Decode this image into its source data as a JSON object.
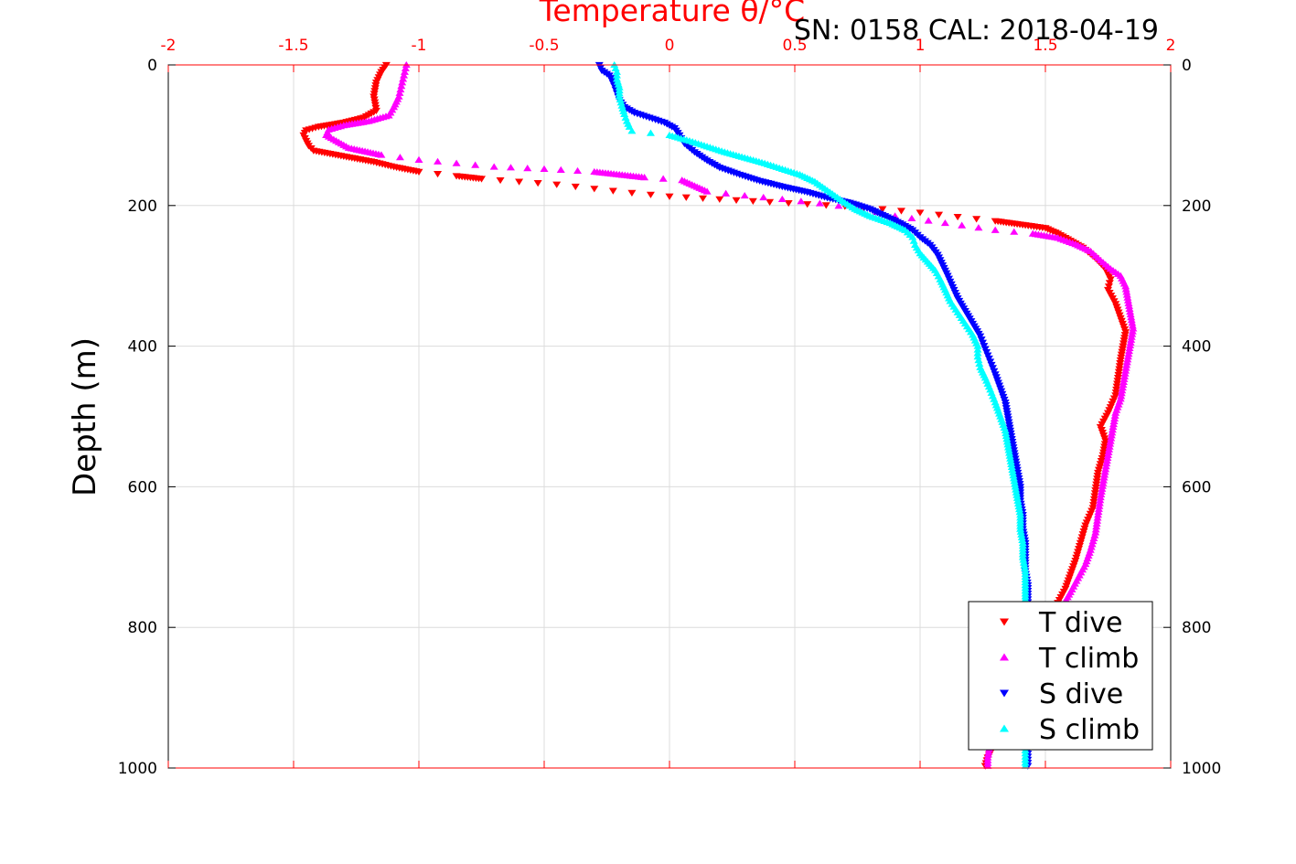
{
  "chart_data": {
    "type": "scatter",
    "title": "Temperature θ/°C",
    "subtitle": "SN: 0158  CAL: 2018-04-19",
    "xlabel": "Temperature θ/°C",
    "ylabel": "Depth (m)",
    "xlim": [
      -2,
      2
    ],
    "ylim": [
      0,
      1000
    ],
    "y_reversed": true,
    "x_ticks": [
      -2,
      -1.5,
      -1,
      -0.5,
      0,
      0.5,
      1,
      1.5,
      2
    ],
    "x_tick_labels": [
      "-2",
      "-1.5",
      "-1",
      "-0.5",
      "0",
      "0.5",
      "1",
      "1.5",
      "2"
    ],
    "y_ticks": [
      0,
      200,
      400,
      600,
      800,
      1000
    ],
    "y_tick_labels": [
      "0",
      "200",
      "400",
      "600",
      "800",
      "1000"
    ],
    "grid": true,
    "legend_position": "bottom-right",
    "series": [
      {
        "name": "T dive",
        "color": "#ff0000",
        "marker": "triangle-down",
        "points": [
          [
            -1.13,
            0
          ],
          [
            -1.15,
            10
          ],
          [
            -1.17,
            25
          ],
          [
            -1.18,
            45
          ],
          [
            -1.17,
            65
          ],
          [
            -1.22,
            75
          ],
          [
            -1.3,
            82
          ],
          [
            -1.4,
            88
          ],
          [
            -1.45,
            93
          ],
          [
            -1.46,
            100
          ],
          [
            -1.45,
            108
          ],
          [
            -1.44,
            115
          ],
          [
            -1.42,
            122
          ],
          [
            -1.3,
            130
          ],
          [
            -1.18,
            138
          ],
          [
            -1.1,
            145
          ],
          [
            -1.0,
            152
          ],
          [
            -0.85,
            158
          ],
          [
            -0.75,
            162
          ],
          [
            -0.6,
            166
          ],
          [
            -0.45,
            170
          ],
          [
            -0.3,
            176
          ],
          [
            -0.15,
            182
          ],
          [
            0.0,
            187
          ],
          [
            0.2,
            191
          ],
          [
            0.4,
            195
          ],
          [
            0.55,
            198
          ],
          [
            0.7,
            201
          ],
          [
            0.85,
            205
          ],
          [
            1.0,
            210
          ],
          [
            1.15,
            216
          ],
          [
            1.3,
            222
          ],
          [
            1.42,
            228
          ],
          [
            1.5,
            232
          ],
          [
            1.55,
            240
          ],
          [
            1.6,
            250
          ],
          [
            1.65,
            260
          ],
          [
            1.7,
            275
          ],
          [
            1.74,
            290
          ],
          [
            1.76,
            305
          ],
          [
            1.75,
            320
          ],
          [
            1.78,
            340
          ],
          [
            1.8,
            360
          ],
          [
            1.82,
            380
          ],
          [
            1.81,
            400
          ],
          [
            1.8,
            420
          ],
          [
            1.79,
            445
          ],
          [
            1.78,
            470
          ],
          [
            1.75,
            495
          ],
          [
            1.72,
            515
          ],
          [
            1.74,
            535
          ],
          [
            1.73,
            555
          ],
          [
            1.71,
            580
          ],
          [
            1.7,
            605
          ],
          [
            1.69,
            630
          ],
          [
            1.66,
            655
          ],
          [
            1.64,
            680
          ],
          [
            1.62,
            705
          ],
          [
            1.6,
            725
          ],
          [
            1.58,
            745
          ],
          [
            1.55,
            765
          ],
          [
            1.52,
            790
          ],
          [
            1.5,
            820
          ],
          [
            1.47,
            850
          ],
          [
            1.44,
            880
          ],
          [
            1.4,
            910
          ],
          [
            1.35,
            940
          ],
          [
            1.3,
            965
          ],
          [
            1.27,
            985
          ],
          [
            1.26,
            997
          ]
        ]
      },
      {
        "name": "T climb",
        "color": "#ff00ff",
        "marker": "triangle-up",
        "points": [
          [
            -1.05,
            0
          ],
          [
            -1.06,
            15
          ],
          [
            -1.07,
            30
          ],
          [
            -1.08,
            45
          ],
          [
            -1.1,
            60
          ],
          [
            -1.12,
            72
          ],
          [
            -1.2,
            80
          ],
          [
            -1.3,
            86
          ],
          [
            -1.36,
            92
          ],
          [
            -1.37,
            100
          ],
          [
            -1.33,
            108
          ],
          [
            -1.28,
            118
          ],
          [
            -1.15,
            128
          ],
          [
            -1.0,
            135
          ],
          [
            -0.85,
            140
          ],
          [
            -0.7,
            145
          ],
          [
            -0.5,
            148
          ],
          [
            -0.3,
            152
          ],
          [
            -0.2,
            156
          ],
          [
            -0.1,
            160
          ],
          [
            0.05,
            164
          ],
          [
            0.1,
            172
          ],
          [
            0.15,
            180
          ],
          [
            0.3,
            186
          ],
          [
            0.45,
            191
          ],
          [
            0.6,
            197
          ],
          [
            0.75,
            204
          ],
          [
            0.9,
            215
          ],
          [
            1.1,
            225
          ],
          [
            1.3,
            235
          ],
          [
            1.45,
            240
          ],
          [
            1.55,
            246
          ],
          [
            1.62,
            255
          ],
          [
            1.68,
            265
          ],
          [
            1.72,
            278
          ],
          [
            1.76,
            290
          ],
          [
            1.8,
            300
          ],
          [
            1.82,
            315
          ],
          [
            1.83,
            335
          ],
          [
            1.84,
            355
          ],
          [
            1.85,
            375
          ],
          [
            1.84,
            395
          ],
          [
            1.83,
            415
          ],
          [
            1.82,
            435
          ],
          [
            1.81,
            455
          ],
          [
            1.8,
            475
          ],
          [
            1.78,
            495
          ],
          [
            1.77,
            515
          ],
          [
            1.76,
            535
          ],
          [
            1.75,
            555
          ],
          [
            1.74,
            575
          ],
          [
            1.73,
            595
          ],
          [
            1.72,
            615
          ],
          [
            1.71,
            640
          ],
          [
            1.7,
            665
          ],
          [
            1.68,
            690
          ],
          [
            1.66,
            710
          ],
          [
            1.63,
            730
          ],
          [
            1.6,
            750
          ],
          [
            1.56,
            775
          ],
          [
            1.52,
            800
          ],
          [
            1.47,
            830
          ],
          [
            1.42,
            860
          ],
          [
            1.37,
            890
          ],
          [
            1.33,
            920
          ],
          [
            1.3,
            945
          ],
          [
            1.28,
            965
          ],
          [
            1.27,
            985
          ],
          [
            1.27,
            997
          ]
        ]
      },
      {
        "name": "S dive",
        "color": "#0000ff",
        "marker": "triangle-down",
        "points": [
          [
            -0.28,
            0
          ],
          [
            -0.27,
            8
          ],
          [
            -0.24,
            15
          ],
          [
            -0.23,
            22
          ],
          [
            -0.22,
            30
          ],
          [
            -0.21,
            40
          ],
          [
            -0.2,
            50
          ],
          [
            -0.18,
            60
          ],
          [
            -0.14,
            68
          ],
          [
            -0.08,
            75
          ],
          [
            -0.02,
            82
          ],
          [
            0.02,
            90
          ],
          [
            0.04,
            100
          ],
          [
            0.06,
            112
          ],
          [
            0.1,
            124
          ],
          [
            0.15,
            136
          ],
          [
            0.2,
            146
          ],
          [
            0.28,
            156
          ],
          [
            0.36,
            165
          ],
          [
            0.45,
            173
          ],
          [
            0.55,
            181
          ],
          [
            0.63,
            189
          ],
          [
            0.72,
            196
          ],
          [
            0.8,
            205
          ],
          [
            0.86,
            215
          ],
          [
            0.92,
            225
          ],
          [
            0.97,
            235
          ],
          [
            1.0,
            245
          ],
          [
            1.04,
            256
          ],
          [
            1.07,
            270
          ],
          [
            1.09,
            285
          ],
          [
            1.11,
            300
          ],
          [
            1.13,
            316
          ],
          [
            1.15,
            332
          ],
          [
            1.18,
            350
          ],
          [
            1.21,
            368
          ],
          [
            1.24,
            386
          ],
          [
            1.26,
            404
          ],
          [
            1.28,
            422
          ],
          [
            1.3,
            440
          ],
          [
            1.32,
            460
          ],
          [
            1.34,
            480
          ],
          [
            1.35,
            500
          ],
          [
            1.36,
            520
          ],
          [
            1.37,
            540
          ],
          [
            1.38,
            560
          ],
          [
            1.39,
            580
          ],
          [
            1.4,
            600
          ],
          [
            1.4,
            620
          ],
          [
            1.41,
            640
          ],
          [
            1.41,
            660
          ],
          [
            1.42,
            680
          ],
          [
            1.42,
            700
          ],
          [
            1.42,
            720
          ],
          [
            1.43,
            740
          ],
          [
            1.43,
            760
          ],
          [
            1.43,
            780
          ],
          [
            1.43,
            800
          ],
          [
            1.43,
            830
          ],
          [
            1.43,
            860
          ],
          [
            1.43,
            890
          ],
          [
            1.43,
            920
          ],
          [
            1.43,
            950
          ],
          [
            1.43,
            975
          ],
          [
            1.43,
            997
          ]
        ]
      },
      {
        "name": "S climb",
        "color": "#00ffff",
        "marker": "triangle-up",
        "points": [
          [
            -0.22,
            0
          ],
          [
            -0.21,
            10
          ],
          [
            -0.21,
            20
          ],
          [
            -0.2,
            32
          ],
          [
            -0.2,
            45
          ],
          [
            -0.19,
            58
          ],
          [
            -0.18,
            70
          ],
          [
            -0.17,
            80
          ],
          [
            -0.16,
            88
          ],
          [
            -0.15,
            94
          ],
          [
            0.0,
            100
          ],
          [
            0.08,
            108
          ],
          [
            0.15,
            116
          ],
          [
            0.22,
            124
          ],
          [
            0.3,
            132
          ],
          [
            0.38,
            140
          ],
          [
            0.45,
            148
          ],
          [
            0.52,
            156
          ],
          [
            0.58,
            166
          ],
          [
            0.62,
            176
          ],
          [
            0.66,
            186
          ],
          [
            0.7,
            196
          ],
          [
            0.74,
            205
          ],
          [
            0.8,
            215
          ],
          [
            0.88,
            225
          ],
          [
            0.94,
            235
          ],
          [
            0.97,
            245
          ],
          [
            0.98,
            256
          ],
          [
            1.0,
            268
          ],
          [
            1.03,
            280
          ],
          [
            1.06,
            292
          ],
          [
            1.08,
            305
          ],
          [
            1.1,
            320
          ],
          [
            1.12,
            336
          ],
          [
            1.15,
            352
          ],
          [
            1.18,
            368
          ],
          [
            1.21,
            384
          ],
          [
            1.23,
            400
          ],
          [
            1.23,
            415
          ],
          [
            1.24,
            430
          ],
          [
            1.26,
            445
          ],
          [
            1.28,
            462
          ],
          [
            1.3,
            480
          ],
          [
            1.32,
            500
          ],
          [
            1.34,
            520
          ],
          [
            1.35,
            540
          ],
          [
            1.36,
            560
          ],
          [
            1.37,
            580
          ],
          [
            1.38,
            600
          ],
          [
            1.39,
            620
          ],
          [
            1.4,
            640
          ],
          [
            1.4,
            660
          ],
          [
            1.41,
            680
          ],
          [
            1.41,
            700
          ],
          [
            1.42,
            720
          ],
          [
            1.42,
            740
          ],
          [
            1.42,
            760
          ],
          [
            1.42,
            780
          ],
          [
            1.42,
            800
          ],
          [
            1.42,
            830
          ],
          [
            1.42,
            860
          ],
          [
            1.42,
            890
          ],
          [
            1.42,
            920
          ],
          [
            1.42,
            950
          ],
          [
            1.42,
            975
          ],
          [
            1.42,
            997
          ]
        ]
      }
    ]
  }
}
